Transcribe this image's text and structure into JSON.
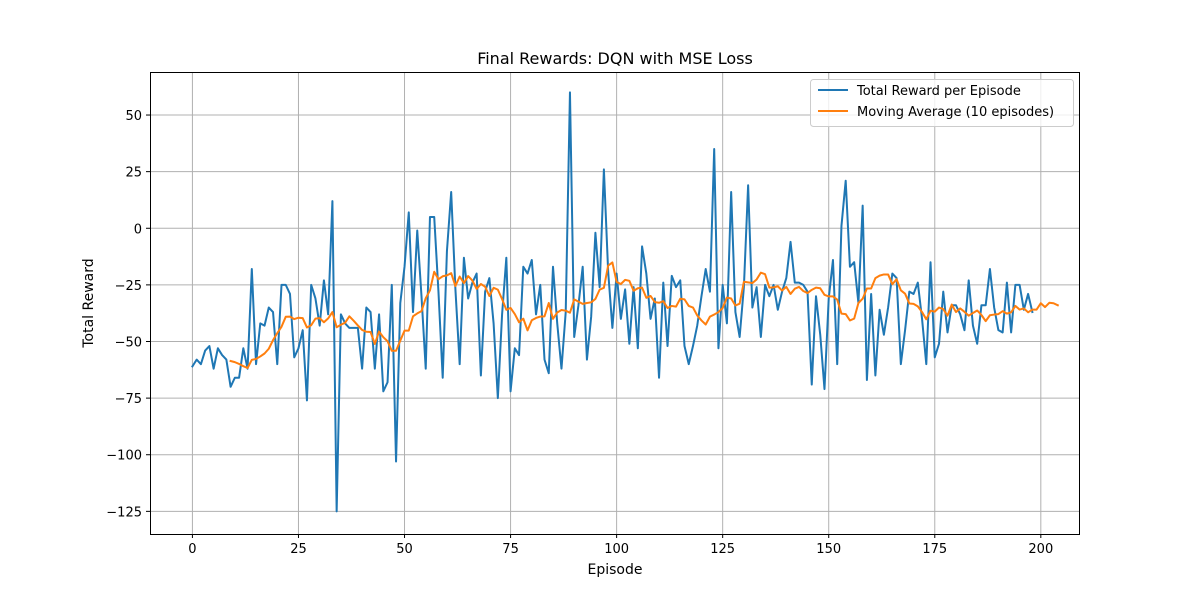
{
  "chart_data": {
    "type": "line",
    "title": "Final Rewards: DQN with MSE Loss",
    "xlabel": "Episode",
    "ylabel": "Total Reward",
    "xlim": [
      -10,
      209
    ],
    "ylim": [
      -135,
      69
    ],
    "xticks": [
      0,
      25,
      50,
      75,
      100,
      125,
      150,
      175,
      200
    ],
    "yticks": [
      -125,
      -100,
      -75,
      -50,
      -25,
      0,
      25,
      50
    ],
    "ytick_labels": [
      "−125",
      "−100",
      "−75",
      "−50",
      "−25",
      "0",
      "25",
      "50"
    ],
    "grid": true,
    "legend_position": "upper right",
    "colors": {
      "total_reward": "#1f77b4",
      "moving_average": "#ff7f0e"
    },
    "series": [
      {
        "name": "Total Reward per Episode",
        "x_start": 0,
        "values": [
          -61,
          -58,
          -60,
          -54,
          -52,
          -62,
          -53,
          -56,
          -58,
          -70,
          -66,
          -66,
          -53,
          -62,
          -18,
          -60,
          -42,
          -43,
          -35,
          -37,
          -60,
          -25,
          -25,
          -29,
          -57,
          -53,
          -45,
          -76,
          -25,
          -31,
          -43,
          -23,
          -38,
          12,
          -125,
          -38,
          -42,
          -44,
          -44,
          -44,
          -62,
          -35,
          -37,
          -62,
          -38,
          -72,
          -68,
          -25,
          -103,
          -33,
          -17,
          7,
          -37,
          -1,
          -30,
          -62,
          5,
          5,
          -28,
          -66,
          -10,
          16,
          -27,
          -60,
          -13,
          -31,
          -24,
          -20,
          -65,
          -28,
          -22,
          -42,
          -75,
          -38,
          -13,
          -72,
          -53,
          -56,
          -17,
          -20,
          -14,
          -38,
          -25,
          -58,
          -64,
          -17,
          -42,
          -62,
          -37,
          60,
          -48,
          -34,
          -17,
          -58,
          -39,
          -2,
          -26,
          26,
          -19,
          -44,
          -20,
          -40,
          -27,
          -51,
          -26,
          -53,
          -8,
          -20,
          -40,
          -31,
          -66,
          -24,
          -52,
          -21,
          -26,
          -23,
          -52,
          -60,
          -52,
          -43,
          -30,
          -18,
          -28,
          35,
          -53,
          -25,
          -42,
          16,
          -37,
          -48,
          -26,
          19,
          -35,
          -26,
          -48,
          -25,
          -30,
          -25,
          -36,
          -28,
          -22,
          -6,
          -24,
          -24,
          -25,
          -28,
          -69,
          -30,
          -47,
          -71,
          -31,
          -14,
          -60,
          1,
          21,
          -17,
          -15,
          -33,
          10,
          -67,
          -29,
          -65,
          -36,
          -47,
          -35,
          -20,
          -22,
          -60,
          -45,
          -28,
          -29,
          -24,
          -40,
          -60,
          -15,
          -57,
          -51,
          -28,
          -46,
          -34,
          -34,
          -38,
          -45,
          -23,
          -43,
          -51,
          -34,
          -34,
          -18,
          -35,
          -45,
          -46,
          -24,
          -46,
          -25,
          -25,
          -36,
          -29,
          -37
        ]
      },
      {
        "name": "Moving Average (10 episodes)",
        "x_start": 9,
        "values": [
          -58.6,
          -59.1,
          -59.9,
          -60.9,
          -61.7,
          -58.1,
          -57.7,
          -56.6,
          -55.3,
          -53.2,
          -49.4,
          -46.3,
          -43.5,
          -39.1,
          -39.0,
          -40.1,
          -39.5,
          -39.7,
          -43.8,
          -42.8,
          -39.9,
          -39.7,
          -41.5,
          -39.8,
          -37.0,
          -43.7,
          -42.6,
          -41.7,
          -38.9,
          -40.8,
          -42.9,
          -44.9,
          -45.7,
          -45.8,
          -51.1,
          -45.6,
          -48.1,
          -49.9,
          -54.1,
          -54.1,
          -49.6,
          -45.2,
          -45.2,
          -38.9,
          -37.6,
          -36.6,
          -30.9,
          -27.4,
          -19.2,
          -22.5,
          -21.2,
          -20.8,
          -19.8,
          -25.5,
          -21.3,
          -24.2,
          -21.1,
          -23.1,
          -26.8,
          -24.6,
          -25.8,
          -29.9,
          -26.3,
          -27.1,
          -31.3,
          -36.0,
          -35.2,
          -37.9,
          -41.5,
          -39.9,
          -45.1,
          -40.6,
          -39.6,
          -39.0,
          -38.9,
          -33.0,
          -40.0,
          -37.2,
          -36.1,
          -36.4,
          -37.3,
          -31.4,
          -32.4,
          -33.4,
          -33.0,
          -32.7,
          -31.2,
          -27.1,
          -26.3,
          -16.5,
          -15.1,
          -23.7,
          -24.6,
          -22.8,
          -23.2,
          -27.6,
          -26.5,
          -26.2,
          -30.7,
          -29.9,
          -32.6,
          -32.9,
          -32.2,
          -35.2,
          -34.3,
          -34.6,
          -31.1,
          -31.4,
          -34.3,
          -35.0,
          -38.5,
          -40.7,
          -42.5,
          -39.0,
          -38.1,
          -37.0,
          -35.2,
          -30.6,
          -31.0,
          -34.1,
          -33.3,
          -23.6,
          -23.9,
          -24.2,
          -22.6,
          -19.6,
          -20.3,
          -26.2,
          -26.1,
          -25.6,
          -27.5,
          -25.9,
          -29.0,
          -26.7,
          -25.9,
          -27.7,
          -28.6,
          -27.2,
          -26.2,
          -26.5,
          -29.4,
          -30.1,
          -30.1,
          -31.5,
          -37.7,
          -37.9,
          -40.7,
          -39.9,
          -33.0,
          -31.1,
          -26.6,
          -26.6,
          -22.0,
          -20.9,
          -20.4,
          -20.4,
          -24.7,
          -22.5,
          -27.4,
          -28.9,
          -33.2,
          -33.4,
          -34.5,
          -37.0,
          -40.2,
          -36.4,
          -36.8,
          -35.0,
          -35.7,
          -38.6,
          -33.7,
          -37.0,
          -35.4,
          -36.9,
          -38.6,
          -37.4,
          -36.3,
          -38.3,
          -41.0,
          -38.4,
          -38.1,
          -37.9,
          -36.6,
          -37.7,
          -37.1,
          -34.3,
          -35.9,
          -35.4,
          -37.1,
          -35.9,
          -35.9,
          -33.1,
          -34.8,
          -32.9,
          -33.1,
          -34.0
        ]
      }
    ]
  }
}
